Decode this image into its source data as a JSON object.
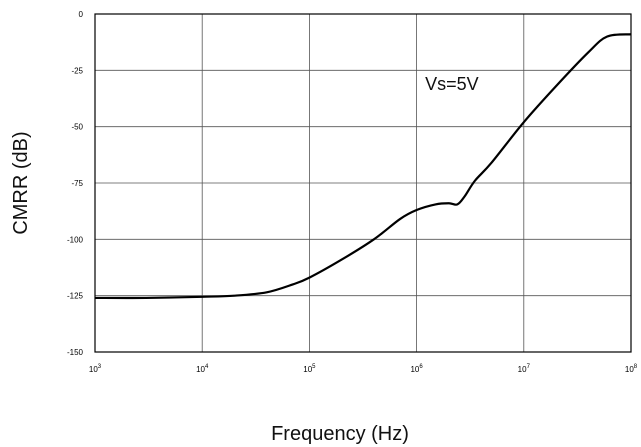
{
  "chart_data": {
    "type": "line",
    "title": "",
    "xlabel": "Frequency (Hz)",
    "ylabel": "CMRR (dB)",
    "x_scale": "log",
    "xlim": [
      1000,
      100000000
    ],
    "ylim": [
      -150,
      0
    ],
    "x_ticks": [
      {
        "value": 1000,
        "base": "10",
        "exp": "3"
      },
      {
        "value": 10000,
        "base": "10",
        "exp": "4"
      },
      {
        "value": 100000,
        "base": "10",
        "exp": "5"
      },
      {
        "value": 1000000,
        "base": "10",
        "exp": "6"
      },
      {
        "value": 10000000,
        "base": "10",
        "exp": "7"
      },
      {
        "value": 100000000,
        "base": "10",
        "exp": "8"
      }
    ],
    "y_ticks": [
      {
        "value": 0,
        "label": "0"
      },
      {
        "value": -25,
        "label": "-25"
      },
      {
        "value": -50,
        "label": "-50"
      },
      {
        "value": -75,
        "label": "-75"
      },
      {
        "value": -100,
        "label": "-100"
      },
      {
        "value": -125,
        "label": "-125"
      },
      {
        "value": -150,
        "label": "-150"
      }
    ],
    "grid": true,
    "legend": "none",
    "annotation": {
      "text": "Vs=5V",
      "x": 4000000,
      "y": -28
    },
    "series": [
      {
        "color": "#000000",
        "x": [
          1000,
          3000,
          10000,
          20000,
          40000,
          70000,
          100000,
          200000,
          400000,
          700000,
          1000000,
          1500000,
          2000000,
          2400000,
          2800000,
          3500000,
          5000000,
          10000000,
          20000000,
          40000000,
          60000000,
          100000000
        ],
        "y": [
          -126,
          -126,
          -125.5,
          -125,
          -123.5,
          -120,
          -117,
          -109,
          -100,
          -91,
          -87,
          -84.5,
          -84,
          -84.5,
          -81,
          -74,
          -66,
          -48,
          -32,
          -17,
          -10,
          -9
        ]
      }
    ]
  }
}
